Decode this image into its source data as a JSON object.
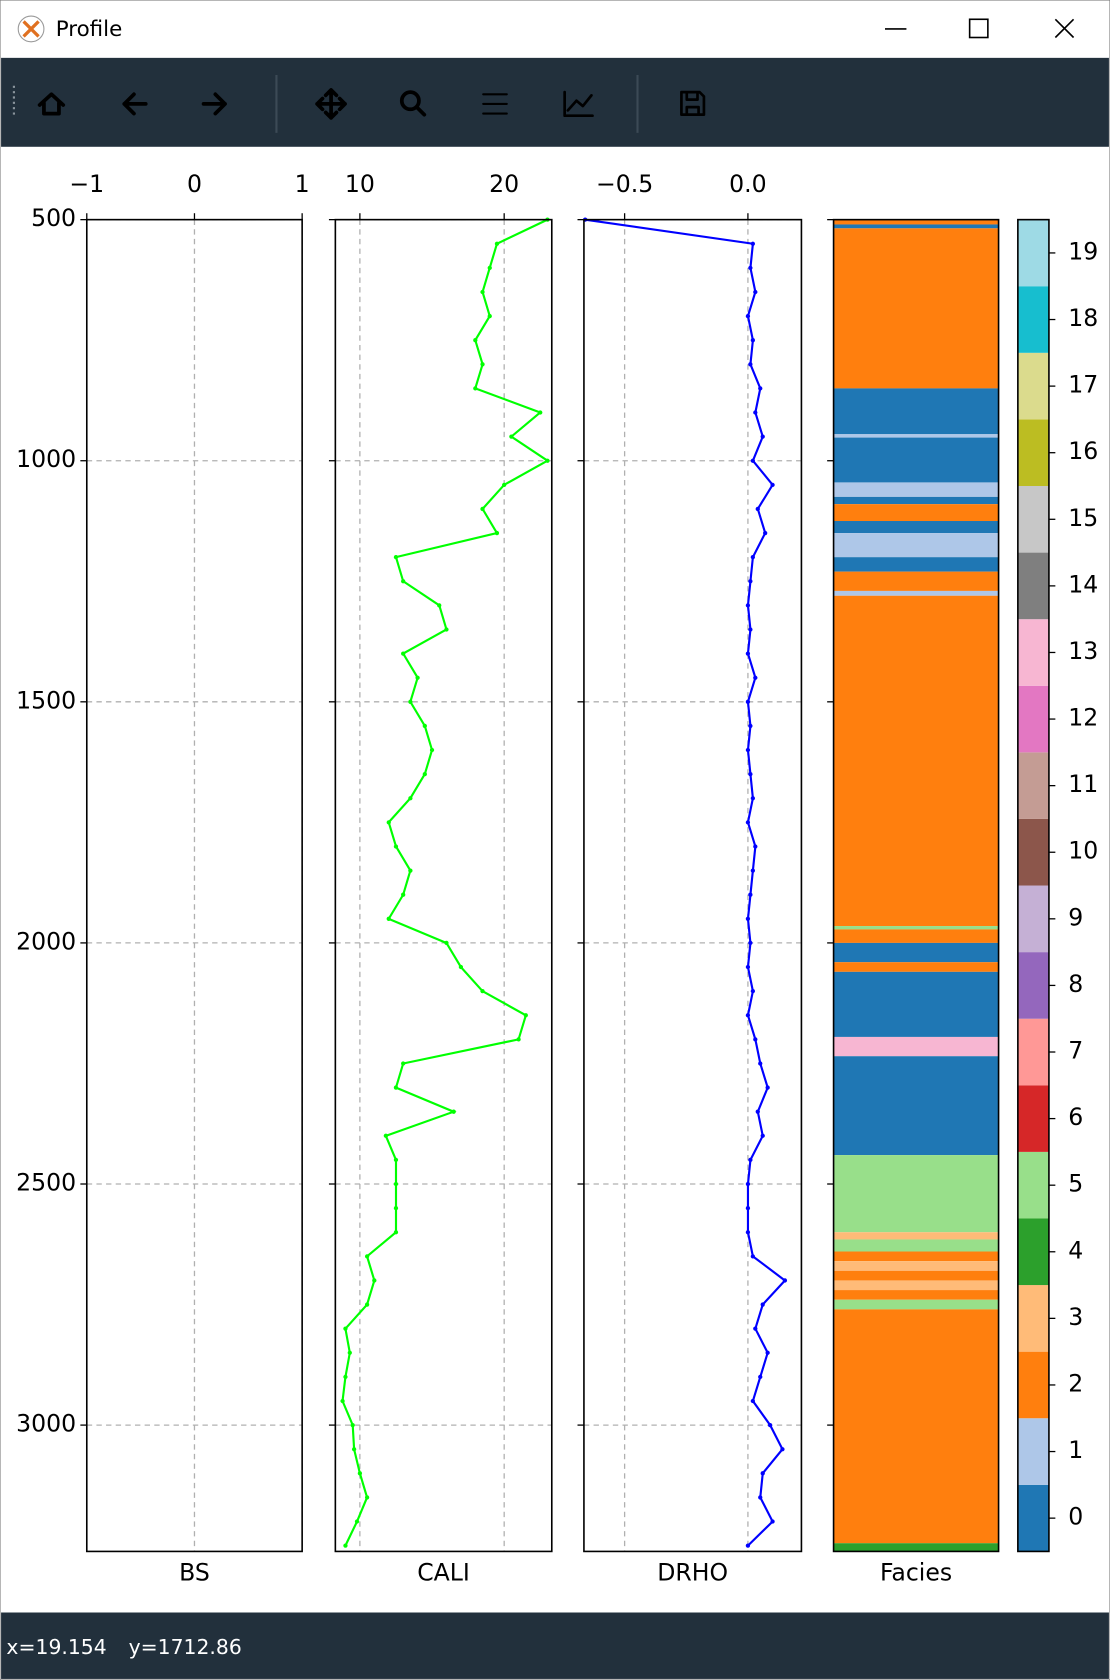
{
  "window": {
    "title": "Profile"
  },
  "status": {
    "x": "x=19.154",
    "y": "y=1712.86"
  },
  "chart_data": [
    {
      "type": "line",
      "xlabel": "BS",
      "xlim": [
        -1,
        1
      ],
      "xticks": [
        {
          "value": -1,
          "label": "−1"
        },
        0,
        1
      ],
      "ylim": [
        3262,
        500
      ],
      "yticks": [
        500,
        1000,
        1500,
        2000,
        2500,
        3000
      ],
      "grid": true
    },
    {
      "type": "line",
      "xlabel": "CALI",
      "xlim": [
        8.3,
        23.3
      ],
      "xticks": [
        10,
        20
      ],
      "grid": true,
      "color": "#00ff00",
      "y": [
        500,
        550,
        600,
        650,
        700,
        750,
        800,
        850,
        900,
        950,
        1000,
        1050,
        1100,
        1150,
        1200,
        1250,
        1300,
        1350,
        1400,
        1450,
        1500,
        1550,
        1600,
        1650,
        1700,
        1750,
        1800,
        1850,
        1900,
        1950,
        2000,
        2050,
        2100,
        2150,
        2200,
        2250,
        2300,
        2350,
        2400,
        2450,
        2500,
        2550,
        2600,
        2650,
        2700,
        2750,
        2800,
        2850,
        2900,
        2950,
        3000,
        3050,
        3100,
        3150,
        3200,
        3250
      ],
      "values": [
        23,
        19.5,
        19,
        18.5,
        19,
        18,
        18.5,
        18,
        22.5,
        20.5,
        23,
        20,
        18.5,
        19.5,
        12.5,
        13,
        15.5,
        16,
        13,
        14,
        13.5,
        14.5,
        15,
        14.5,
        13.5,
        12,
        12.5,
        13.5,
        13,
        12,
        16,
        17,
        18.5,
        21.5,
        21,
        13,
        12.5,
        16.5,
        11.8,
        12.5,
        12.5,
        12.5,
        12.5,
        10.5,
        11,
        10.5,
        9,
        9.3,
        9,
        8.8,
        9.5,
        9.6,
        10,
        10.5,
        9.8,
        9
      ]
    },
    {
      "type": "line",
      "xlabel": "DRHO",
      "xlim": [
        -0.665,
        0.217
      ],
      "xticks": [
        {
          "value": -0.5,
          "label": "−0.5"
        },
        {
          "value": 0,
          "label": "0.0"
        }
      ],
      "grid": true,
      "color": "#0000ff",
      "y": [
        500,
        550,
        600,
        650,
        700,
        750,
        800,
        850,
        900,
        950,
        1000,
        1050,
        1100,
        1150,
        1200,
        1250,
        1300,
        1350,
        1400,
        1450,
        1500,
        1550,
        1600,
        1650,
        1700,
        1750,
        1800,
        1850,
        1900,
        1950,
        2000,
        2050,
        2100,
        2150,
        2200,
        2250,
        2300,
        2350,
        2400,
        2450,
        2500,
        2550,
        2600,
        2650,
        2700,
        2750,
        2800,
        2850,
        2900,
        2950,
        3000,
        3050,
        3100,
        3150,
        3200,
        3250
      ],
      "values": [
        -0.66,
        0.02,
        0.01,
        0.03,
        0,
        0.02,
        0.01,
        0.05,
        0.03,
        0.06,
        0.02,
        0.1,
        0.04,
        0.07,
        0.02,
        0.01,
        0,
        0.01,
        0,
        0.03,
        0,
        0.01,
        0,
        0.01,
        0.02,
        0,
        0.03,
        0.02,
        0.01,
        0,
        0.01,
        0,
        0.02,
        0,
        0.03,
        0.05,
        0.08,
        0.04,
        0.06,
        0.01,
        0,
        0,
        0,
        0.02,
        0.15,
        0.06,
        0.03,
        0.08,
        0.05,
        0.02,
        0.09,
        0.14,
        0.06,
        0.05,
        0.1,
        0
      ]
    },
    {
      "type": "strip",
      "xlabel": "Facies",
      "intervals": [
        {
          "top": 500,
          "base": 510,
          "facies": 2
        },
        {
          "top": 510,
          "base": 518,
          "facies": 0
        },
        {
          "top": 518,
          "base": 850,
          "facies": 2
        },
        {
          "top": 850,
          "base": 945,
          "facies": 0
        },
        {
          "top": 945,
          "base": 952,
          "facies": 1
        },
        {
          "top": 952,
          "base": 1045,
          "facies": 0
        },
        {
          "top": 1045,
          "base": 1075,
          "facies": 1
        },
        {
          "top": 1075,
          "base": 1090,
          "facies": 0
        },
        {
          "top": 1090,
          "base": 1125,
          "facies": 2
        },
        {
          "top": 1125,
          "base": 1150,
          "facies": 0
        },
        {
          "top": 1150,
          "base": 1200,
          "facies": 1
        },
        {
          "top": 1200,
          "base": 1230,
          "facies": 0
        },
        {
          "top": 1230,
          "base": 1270,
          "facies": 2
        },
        {
          "top": 1270,
          "base": 1280,
          "facies": 1
        },
        {
          "top": 1280,
          "base": 1965,
          "facies": 2
        },
        {
          "top": 1965,
          "base": 1972,
          "facies": 5
        },
        {
          "top": 1972,
          "base": 2000,
          "facies": 2
        },
        {
          "top": 2000,
          "base": 2040,
          "facies": 0
        },
        {
          "top": 2040,
          "base": 2060,
          "facies": 2
        },
        {
          "top": 2060,
          "base": 2195,
          "facies": 0
        },
        {
          "top": 2195,
          "base": 2235,
          "facies": 13
        },
        {
          "top": 2235,
          "base": 2440,
          "facies": 0
        },
        {
          "top": 2440,
          "base": 2600,
          "facies": 5
        },
        {
          "top": 2600,
          "base": 2615,
          "facies": 3
        },
        {
          "top": 2615,
          "base": 2640,
          "facies": 5
        },
        {
          "top": 2640,
          "base": 2660,
          "facies": 2
        },
        {
          "top": 2660,
          "base": 2680,
          "facies": 3
        },
        {
          "top": 2680,
          "base": 2700,
          "facies": 2
        },
        {
          "top": 2700,
          "base": 2720,
          "facies": 3
        },
        {
          "top": 2720,
          "base": 2740,
          "facies": 2
        },
        {
          "top": 2740,
          "base": 2760,
          "facies": 5
        },
        {
          "top": 2760,
          "base": 3245,
          "facies": 2
        },
        {
          "top": 3245,
          "base": 3262,
          "facies": 4
        }
      ]
    },
    {
      "type": "colorbar",
      "ylim": [
        -0.5,
        19.5
      ],
      "yticks": [
        0,
        1,
        2,
        3,
        4,
        5,
        6,
        7,
        8,
        9,
        10,
        11,
        12,
        13,
        14,
        15,
        16,
        17,
        18,
        19
      ],
      "colors": [
        "#1f77b4",
        "#aec7e8",
        "#ff7f0e",
        "#ffbb78",
        "#2ca02c",
        "#98df8a",
        "#d62728",
        "#ff9896",
        "#9467bd",
        "#c5b0d5",
        "#8c564b",
        "#c49c94",
        "#e377c2",
        "#f7b6d2",
        "#7f7f7f",
        "#c7c7c7",
        "#bcbd22",
        "#dbdb8d",
        "#17becf",
        "#9edae5"
      ]
    }
  ]
}
